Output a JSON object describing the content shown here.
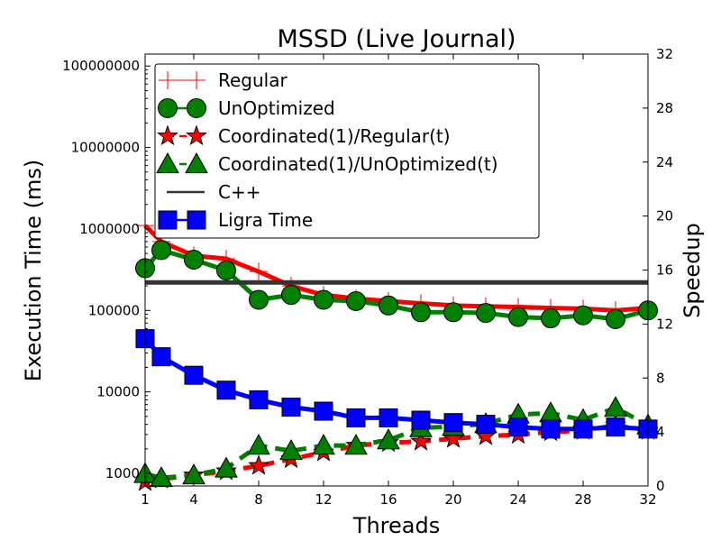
{
  "chart_data": {
    "type": "line",
    "title": "MSSD (Live Journal)",
    "xlabel": "Threads",
    "ylabel_left": "Execution Time (ms)",
    "ylabel_right": "Speedup",
    "x_ticks": [
      1,
      4,
      8,
      12,
      16,
      20,
      24,
      28,
      32
    ],
    "x_range": [
      1,
      32
    ],
    "y_left": {
      "scale": "log",
      "range": [
        700,
        140000000
      ],
      "ticks": [
        1000,
        10000,
        100000,
        1000000,
        10000000,
        100000000
      ],
      "tick_labels": [
        "1000",
        "10000",
        "100000",
        "1000000",
        "10000000",
        "100000000"
      ]
    },
    "y_right": {
      "scale": "linear",
      "range": [
        0,
        32
      ],
      "ticks": [
        0,
        4,
        8,
        12,
        16,
        20,
        24,
        28,
        32
      ],
      "tick_labels": [
        "0",
        "4",
        "8",
        "12",
        "16",
        "20",
        "24",
        "28",
        "32"
      ]
    },
    "legend": {
      "placement": "top-left"
    },
    "grid": false,
    "series": [
      {
        "name": "Regular",
        "axis": "left",
        "color": "#ff0000",
        "marker": "plus",
        "line_style": "solid",
        "x": [
          1,
          2,
          4,
          6,
          8,
          10,
          12,
          14,
          16,
          18,
          20,
          22,
          24,
          26,
          28,
          30,
          32
        ],
        "y": [
          1100000,
          700000,
          470000,
          430000,
          300000,
          200000,
          155000,
          140000,
          130000,
          122000,
          115000,
          112000,
          110000,
          107000,
          105000,
          100000,
          107000
        ]
      },
      {
        "name": "UnOptimized",
        "axis": "left",
        "color": "#008000",
        "marker": "circle",
        "line_style": "solid",
        "x": [
          1,
          2,
          4,
          6,
          8,
          10,
          12,
          14,
          16,
          18,
          20,
          22,
          24,
          26,
          28,
          30,
          32
        ],
        "y": [
          330000,
          550000,
          420000,
          310000,
          135000,
          155000,
          135000,
          130000,
          115000,
          95000,
          95000,
          93000,
          83000,
          80000,
          87000,
          78000,
          100000
        ]
      },
      {
        "name": "Coordinated(1)/Regular(t)",
        "axis": "right",
        "color": "#ff0000",
        "marker": "star",
        "line_style": "dashed",
        "x": [
          1,
          2,
          4,
          6,
          8,
          10,
          12,
          14,
          16,
          18,
          20,
          22,
          24,
          26,
          28,
          30,
          32
        ],
        "y": [
          0.3,
          0.5,
          0.8,
          1.1,
          1.5,
          2.0,
          2.5,
          3.0,
          3.2,
          3.3,
          3.5,
          3.7,
          3.8,
          4.0,
          4.1,
          4.5,
          4.1
        ]
      },
      {
        "name": "Coordinated(1)/UnOptimized(t)",
        "axis": "right",
        "color": "#008000",
        "marker": "triangle",
        "line_style": "dashed",
        "x": [
          1,
          2,
          4,
          6,
          8,
          10,
          12,
          14,
          16,
          18,
          20,
          22,
          24,
          26,
          28,
          30,
          32
        ],
        "y": [
          0.9,
          0.6,
          0.8,
          1.3,
          3.0,
          2.6,
          3.0,
          3.0,
          3.4,
          4.3,
          4.4,
          4.6,
          5.3,
          5.4,
          4.9,
          5.8,
          4.5
        ]
      },
      {
        "name": "C++",
        "axis": "left",
        "color": "#333333",
        "marker": "none",
        "line_style": "solid",
        "x": [
          1,
          32
        ],
        "y": [
          220000,
          220000
        ]
      },
      {
        "name": "Ligra Time",
        "axis": "left",
        "color": "#0000ff",
        "marker": "square",
        "line_style": "solid",
        "x": [
          1,
          2,
          4,
          6,
          8,
          10,
          12,
          14,
          16,
          18,
          20,
          22,
          24,
          26,
          28,
          30,
          32
        ],
        "y": [
          45000,
          27000,
          16000,
          10500,
          8000,
          6500,
          5800,
          4800,
          4800,
          4500,
          4200,
          4000,
          3700,
          3500,
          3500,
          3700,
          3500
        ]
      }
    ]
  }
}
